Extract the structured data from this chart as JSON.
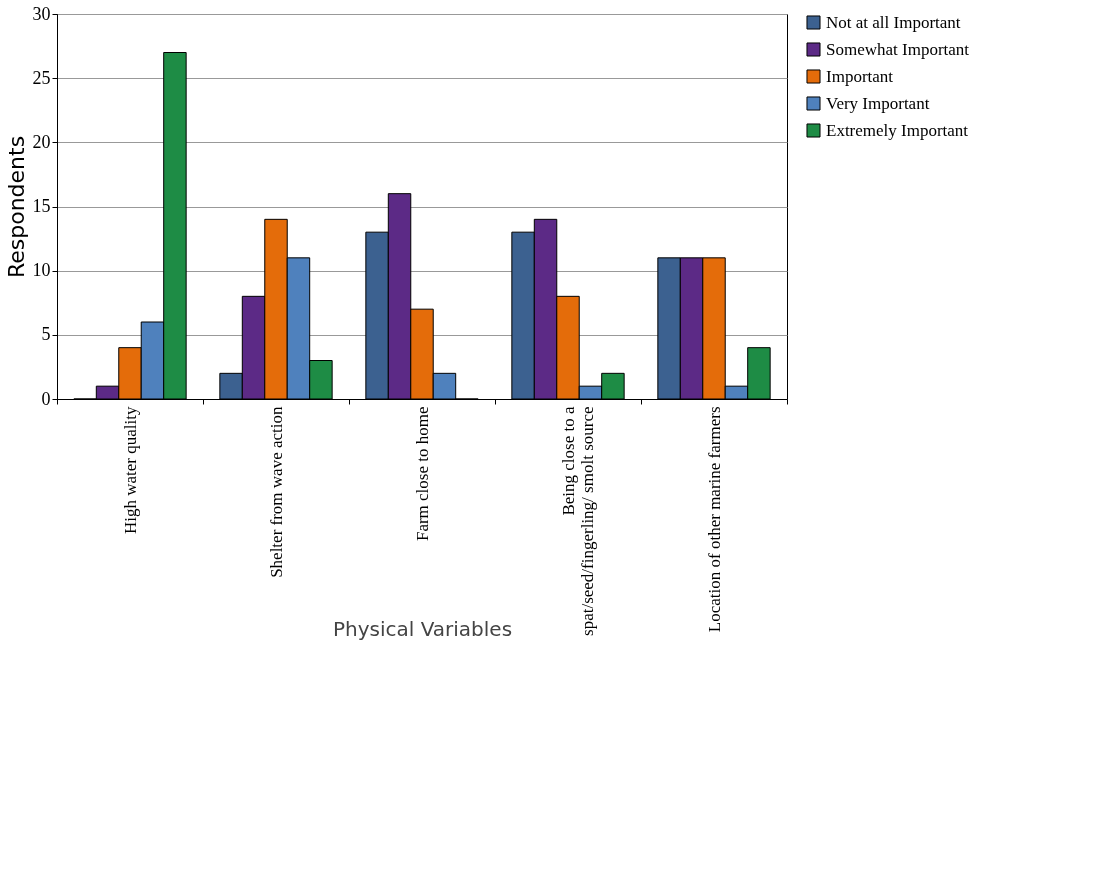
{
  "chart_data": {
    "type": "bar",
    "xlabel": "Physical Variables",
    "ylabel": "Respondents",
    "categories": [
      "High water quality",
      "Shelter from wave action",
      "Farm close to home",
      "Being close to a\nspat/seed/fingerling/ smolt source",
      "Location of other marine farmers"
    ],
    "series": [
      {
        "name": "Not at all Important",
        "color": "#3c6190",
        "values": [
          0,
          2,
          13,
          13,
          11
        ]
      },
      {
        "name": "Somewhat Important",
        "color": "#5c2a86",
        "values": [
          1,
          8,
          16,
          14,
          11
        ]
      },
      {
        "name": "Important",
        "color": "#e46c0a",
        "values": [
          4,
          14,
          7,
          8,
          11
        ]
      },
      {
        "name": "Very Important",
        "color": "#4f81bd",
        "values": [
          6,
          11,
          2,
          1,
          1
        ]
      },
      {
        "name": "Extremely Important",
        "color": "#1e8c45",
        "values": [
          27,
          3,
          0,
          2,
          4
        ]
      }
    ],
    "ylim": [
      0,
      30
    ],
    "yticks": [
      0,
      5,
      10,
      15,
      20,
      25,
      30
    ],
    "grid": "y",
    "legend": "right"
  }
}
